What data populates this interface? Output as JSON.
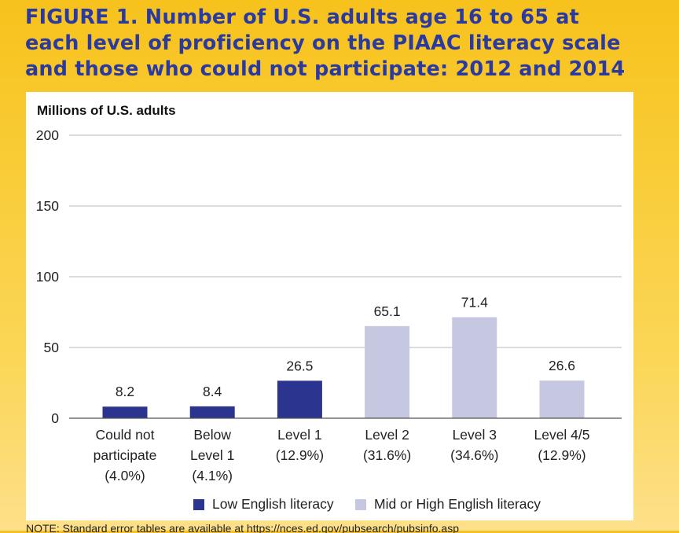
{
  "figure": {
    "title_lines": [
      "FIGURE 1. Number of U.S. adults age 16 to 65 at",
      "each level of proficiency on the PIAAC literacy scale",
      "and those who could not participate: 2012 and 2014"
    ],
    "note": "NOTE: Standard error tables are available at https://nces.ed.gov/pubsearch/pubsinfo.asp"
  },
  "colors": {
    "low": "#2b3590",
    "mid_high": "#c5c8e0",
    "title": "#2b3aa0",
    "grid": "#b9b9b9"
  },
  "chart_data": {
    "type": "bar",
    "title": "",
    "ylabel": "Millions of U.S. adults",
    "xlabel": "",
    "ylim": [
      0,
      200
    ],
    "yticks": [
      0,
      50,
      100,
      150,
      200
    ],
    "grid": true,
    "legend_position": "bottom",
    "categories": [
      [
        "Could not",
        "participate",
        "(4.0%)"
      ],
      [
        "Below",
        "Level 1",
        "(4.1%)"
      ],
      [
        "Level 1",
        "(12.9%)"
      ],
      [
        "Level 2",
        "(31.6%)"
      ],
      [
        "Level 3",
        "(34.6%)"
      ],
      [
        "Level 4/5",
        "(12.9%)"
      ]
    ],
    "values": [
      8.2,
      8.4,
      26.5,
      65.1,
      71.4,
      26.6
    ],
    "value_labels": [
      "8.2",
      "8.4",
      "26.5",
      "65.1",
      "71.4",
      "26.6"
    ],
    "bar_group": [
      "low",
      "low",
      "low",
      "mid_high",
      "mid_high",
      "mid_high"
    ],
    "legend": [
      {
        "key": "low",
        "label": "Low English literacy"
      },
      {
        "key": "mid_high",
        "label": "Mid or High English literacy"
      }
    ]
  }
}
